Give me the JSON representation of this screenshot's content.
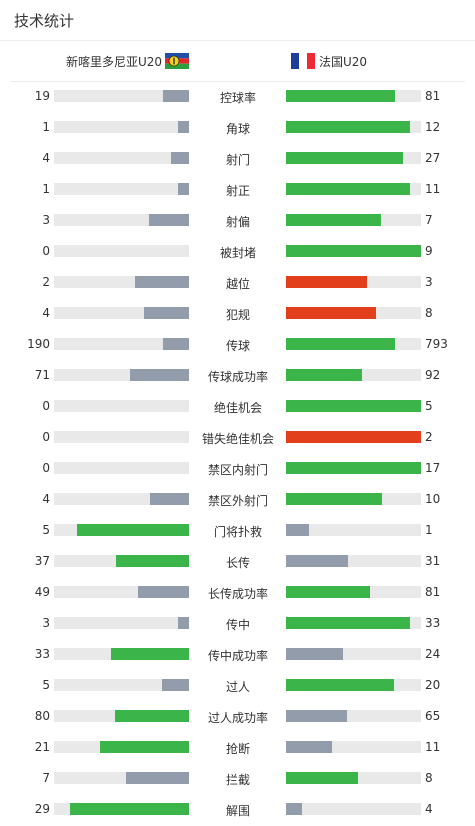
{
  "title": "技术统计",
  "teams": {
    "home": "新喀里多尼亚U20",
    "away": "法国U20"
  },
  "colors": {
    "green": "#3bb44a",
    "red": "#e2401c",
    "gray": "#939cab",
    "track": "#e9e9e9"
  },
  "stats": [
    {
      "label": "控球率",
      "home": "19",
      "away": "81",
      "home_fill": 0.19,
      "away_fill": 0.81,
      "home_color": "gray",
      "away_color": "green"
    },
    {
      "label": "角球",
      "home": "1",
      "away": "12",
      "home_fill": 0.08,
      "away_fill": 0.92,
      "home_color": "gray",
      "away_color": "green"
    },
    {
      "label": "射门",
      "home": "4",
      "away": "27",
      "home_fill": 0.13,
      "away_fill": 0.87,
      "home_color": "gray",
      "away_color": "green"
    },
    {
      "label": "射正",
      "home": "1",
      "away": "11",
      "home_fill": 0.08,
      "away_fill": 0.92,
      "home_color": "gray",
      "away_color": "green"
    },
    {
      "label": "射偏",
      "home": "3",
      "away": "7",
      "home_fill": 0.3,
      "away_fill": 0.7,
      "home_color": "gray",
      "away_color": "green"
    },
    {
      "label": "被封堵",
      "home": "0",
      "away": "9",
      "home_fill": 0,
      "away_fill": 1.0,
      "home_color": "gray",
      "away_color": "green"
    },
    {
      "label": "越位",
      "home": "2",
      "away": "3",
      "home_fill": 0.4,
      "away_fill": 0.6,
      "home_color": "gray",
      "away_color": "red"
    },
    {
      "label": "犯规",
      "home": "4",
      "away": "8",
      "home_fill": 0.33,
      "away_fill": 0.67,
      "home_color": "gray",
      "away_color": "red"
    },
    {
      "label": "传球",
      "home": "190",
      "away": "793",
      "home_fill": 0.19,
      "away_fill": 0.81,
      "home_color": "gray",
      "away_color": "green"
    },
    {
      "label": "传球成功率",
      "home": "71",
      "away": "92",
      "home_fill": 0.44,
      "away_fill": 0.56,
      "home_color": "gray",
      "away_color": "green"
    },
    {
      "label": "绝佳机会",
      "home": "0",
      "away": "5",
      "home_fill": 0,
      "away_fill": 1.0,
      "home_color": "gray",
      "away_color": "green"
    },
    {
      "label": "错失绝佳机会",
      "home": "0",
      "away": "2",
      "home_fill": 0,
      "away_fill": 1.0,
      "home_color": "gray",
      "away_color": "red"
    },
    {
      "label": "禁区内射门",
      "home": "0",
      "away": "17",
      "home_fill": 0,
      "away_fill": 1.0,
      "home_color": "gray",
      "away_color": "green"
    },
    {
      "label": "禁区外射门",
      "home": "4",
      "away": "10",
      "home_fill": 0.29,
      "away_fill": 0.71,
      "home_color": "gray",
      "away_color": "green"
    },
    {
      "label": "门将扑救",
      "home": "5",
      "away": "1",
      "home_fill": 0.83,
      "away_fill": 0.17,
      "home_color": "green",
      "away_color": "gray"
    },
    {
      "label": "长传",
      "home": "37",
      "away": "31",
      "home_fill": 0.54,
      "away_fill": 0.46,
      "home_color": "green",
      "away_color": "gray"
    },
    {
      "label": "长传成功率",
      "home": "49",
      "away": "81",
      "home_fill": 0.38,
      "away_fill": 0.62,
      "home_color": "gray",
      "away_color": "green"
    },
    {
      "label": "传中",
      "home": "3",
      "away": "33",
      "home_fill": 0.08,
      "away_fill": 0.92,
      "home_color": "gray",
      "away_color": "green"
    },
    {
      "label": "传中成功率",
      "home": "33",
      "away": "24",
      "home_fill": 0.58,
      "away_fill": 0.42,
      "home_color": "green",
      "away_color": "gray"
    },
    {
      "label": "过人",
      "home": "5",
      "away": "20",
      "home_fill": 0.2,
      "away_fill": 0.8,
      "home_color": "gray",
      "away_color": "green"
    },
    {
      "label": "过人成功率",
      "home": "80",
      "away": "65",
      "home_fill": 0.55,
      "away_fill": 0.45,
      "home_color": "green",
      "away_color": "gray"
    },
    {
      "label": "抢断",
      "home": "21",
      "away": "11",
      "home_fill": 0.66,
      "away_fill": 0.34,
      "home_color": "green",
      "away_color": "gray"
    },
    {
      "label": "拦截",
      "home": "7",
      "away": "8",
      "home_fill": 0.47,
      "away_fill": 0.53,
      "home_color": "gray",
      "away_color": "green"
    },
    {
      "label": "解围",
      "home": "29",
      "away": "4",
      "home_fill": 0.88,
      "away_fill": 0.12,
      "home_color": "green",
      "away_color": "gray"
    }
  ]
}
